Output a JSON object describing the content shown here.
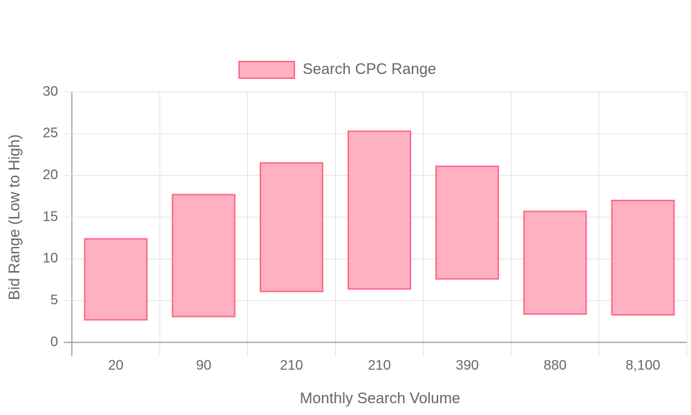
{
  "chart_data": {
    "type": "floating-bar",
    "xlabel": "Monthly Search Volume",
    "ylabel": "Bid Range (Low to High)",
    "categories": [
      "20",
      "90",
      "210",
      "210",
      "390",
      "880",
      "8,100"
    ],
    "series": [
      {
        "name": "Search CPC Range",
        "color": "#ff6384",
        "fill": "#ffb1c1",
        "values": [
          [
            2.7,
            12.4
          ],
          [
            3.1,
            17.7
          ],
          [
            6.1,
            21.5
          ],
          [
            6.4,
            25.3
          ],
          [
            7.6,
            21.1
          ],
          [
            3.4,
            15.7
          ],
          [
            3.3,
            17.0
          ]
        ]
      }
    ],
    "ylim": [
      0,
      30
    ],
    "yticks": [
      0,
      5,
      10,
      15,
      20,
      25,
      30
    ],
    "grid": true,
    "legend": "top"
  }
}
